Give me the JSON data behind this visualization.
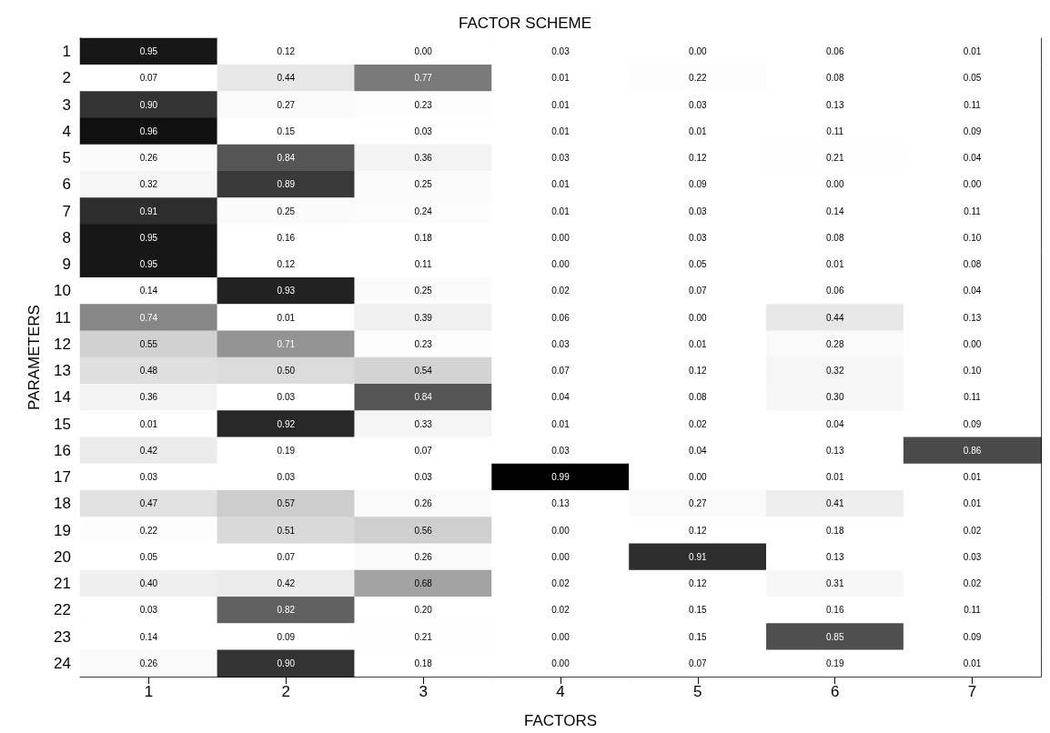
{
  "chart_data": {
    "type": "heatmap",
    "title": "FACTOR SCHEME",
    "xlabel": "FACTORS",
    "ylabel": "PARAMETERS",
    "categories": [
      "1",
      "2",
      "3",
      "4",
      "5",
      "6",
      "7"
    ],
    "y_categories": [
      "1",
      "2",
      "3",
      "4",
      "5",
      "6",
      "7",
      "8",
      "9",
      "10",
      "11",
      "12",
      "13",
      "14",
      "15",
      "16",
      "17",
      "18",
      "19",
      "20",
      "21",
      "22",
      "23",
      "24"
    ],
    "cell_labels": [
      [
        "0.95",
        "0.12",
        "0.00",
        "0.03",
        "0.00",
        "0.06",
        "0.01"
      ],
      [
        "0.07",
        "0.44",
        "0.77",
        "0.01",
        "0.22",
        "0.08",
        "0.05"
      ],
      [
        "0.90",
        "0.27",
        "0.23",
        "0.01",
        "0.03",
        "0.13",
        "0.11"
      ],
      [
        "0.96",
        "0.15",
        "0.03",
        "0.01",
        "0.01",
        "0.11",
        "0.09"
      ],
      [
        "0.26",
        "0.84",
        "0.36",
        "0.03",
        "0.12",
        "0.21",
        "0.04"
      ],
      [
        "0.32",
        "0.89",
        "0.25",
        "0.01",
        "0.09",
        "0.00",
        "0.00"
      ],
      [
        "0.91",
        "0.25",
        "0.24",
        "0.01",
        "0.03",
        "0.14",
        "0.11"
      ],
      [
        "0.95",
        "0.16",
        "0.18",
        "0.00",
        "0.03",
        "0.08",
        "0.10"
      ],
      [
        "0.95",
        "0.12",
        "0.11",
        "0.00",
        "0.05",
        "0.01",
        "0.08"
      ],
      [
        "0.14",
        "0.93",
        "0.25",
        "0.02",
        "0.07",
        "0.06",
        "0.04"
      ],
      [
        "0.74",
        "0.01",
        "0.39",
        "0.06",
        "0.00",
        "0.44",
        "0.13"
      ],
      [
        "0.55",
        "0.71",
        "0.23",
        "0.03",
        "0.01",
        "0.28",
        "0.00"
      ],
      [
        "0.48",
        "0.50",
        "0.54",
        "0.07",
        "0.12",
        "0.32",
        "0.10"
      ],
      [
        "0.36",
        "0.03",
        "0.84",
        "0.04",
        "0.08",
        "0.30",
        "0.11"
      ],
      [
        "0.01",
        "0.92",
        "0.33",
        "0.01",
        "0.02",
        "0.04",
        "0.09"
      ],
      [
        "0.42",
        "0.19",
        "0.07",
        "0.03",
        "0.04",
        "0.13",
        "0.86"
      ],
      [
        "0.03",
        "0.03",
        "0.03",
        "0.99",
        "0.00",
        "0.01",
        "0.01"
      ],
      [
        "0.47",
        "0.57",
        "0.26",
        "0.13",
        "0.27",
        "0.41",
        "0.01"
      ],
      [
        "0.22",
        "0.51",
        "0.56",
        "0.00",
        "0.12",
        "0.18",
        "0.02"
      ],
      [
        "0.05",
        "0.07",
        "0.26",
        "0.00",
        "0.91",
        "0.13",
        "0.03"
      ],
      [
        "0.40",
        "0.42",
        "0.68",
        "0.02",
        "0.12",
        "0.31",
        "0.02"
      ],
      [
        "0.03",
        "0.82",
        "0.20",
        "0.02",
        "0.15",
        "0.16",
        "0.11"
      ],
      [
        "0.14",
        "0.09",
        "0.21",
        "0.00",
        "0.15",
        "0.85",
        "0.09"
      ],
      [
        "0.26",
        "0.90",
        "0.18",
        "0.00",
        "0.07",
        "0.19",
        "0.01"
      ]
    ],
    "cells": [
      [
        0.95,
        0.12,
        0.0,
        0.03,
        0.0,
        0.06,
        0.01
      ],
      [
        0.07,
        0.44,
        0.77,
        0.01,
        0.22,
        0.08,
        0.05
      ],
      [
        0.9,
        0.27,
        0.23,
        0.01,
        0.03,
        0.13,
        0.11
      ],
      [
        0.96,
        0.15,
        0.03,
        0.01,
        0.01,
        0.11,
        0.09
      ],
      [
        0.26,
        0.84,
        0.36,
        0.03,
        0.12,
        0.21,
        0.04
      ],
      [
        0.32,
        0.89,
        0.25,
        0.01,
        0.09,
        0.0,
        0.0
      ],
      [
        0.91,
        0.25,
        0.24,
        0.01,
        0.03,
        0.14,
        0.11
      ],
      [
        0.95,
        0.16,
        0.18,
        0.0,
        0.03,
        0.08,
        0.1
      ],
      [
        0.95,
        0.12,
        0.11,
        0.0,
        0.05,
        0.01,
        0.08
      ],
      [
        0.14,
        0.93,
        0.25,
        0.02,
        0.07,
        0.06,
        0.04
      ],
      [
        0.74,
        0.01,
        0.39,
        0.06,
        0.0,
        0.44,
        0.13
      ],
      [
        0.55,
        0.71,
        0.23,
        0.03,
        0.01,
        0.28,
        0.0
      ],
      [
        0.48,
        0.5,
        0.54,
        0.07,
        0.12,
        0.32,
        0.1
      ],
      [
        0.36,
        0.03,
        0.84,
        0.04,
        0.08,
        0.3,
        0.11
      ],
      [
        0.01,
        0.92,
        0.33,
        0.01,
        0.02,
        0.04,
        0.09
      ],
      [
        0.42,
        0.19,
        0.07,
        0.03,
        0.04,
        0.13,
        0.86
      ],
      [
        0.03,
        0.03,
        0.03,
        0.99,
        0.0,
        0.01,
        0.01
      ],
      [
        0.47,
        0.57,
        0.26,
        0.13,
        0.27,
        0.41,
        0.01
      ],
      [
        0.22,
        0.51,
        0.56,
        0.0,
        0.12,
        0.18,
        0.02
      ],
      [
        0.05,
        0.07,
        0.26,
        0.0,
        0.91,
        0.13,
        0.03
      ],
      [
        0.4,
        0.42,
        0.68,
        0.02,
        0.12,
        0.31,
        0.02
      ],
      [
        0.03,
        0.82,
        0.2,
        0.02,
        0.15,
        0.16,
        0.11
      ],
      [
        0.14,
        0.09,
        0.21,
        0.0,
        0.15,
        0.85,
        0.09
      ],
      [
        0.26,
        0.9,
        0.18,
        0.0,
        0.07,
        0.19,
        0.01
      ]
    ]
  }
}
